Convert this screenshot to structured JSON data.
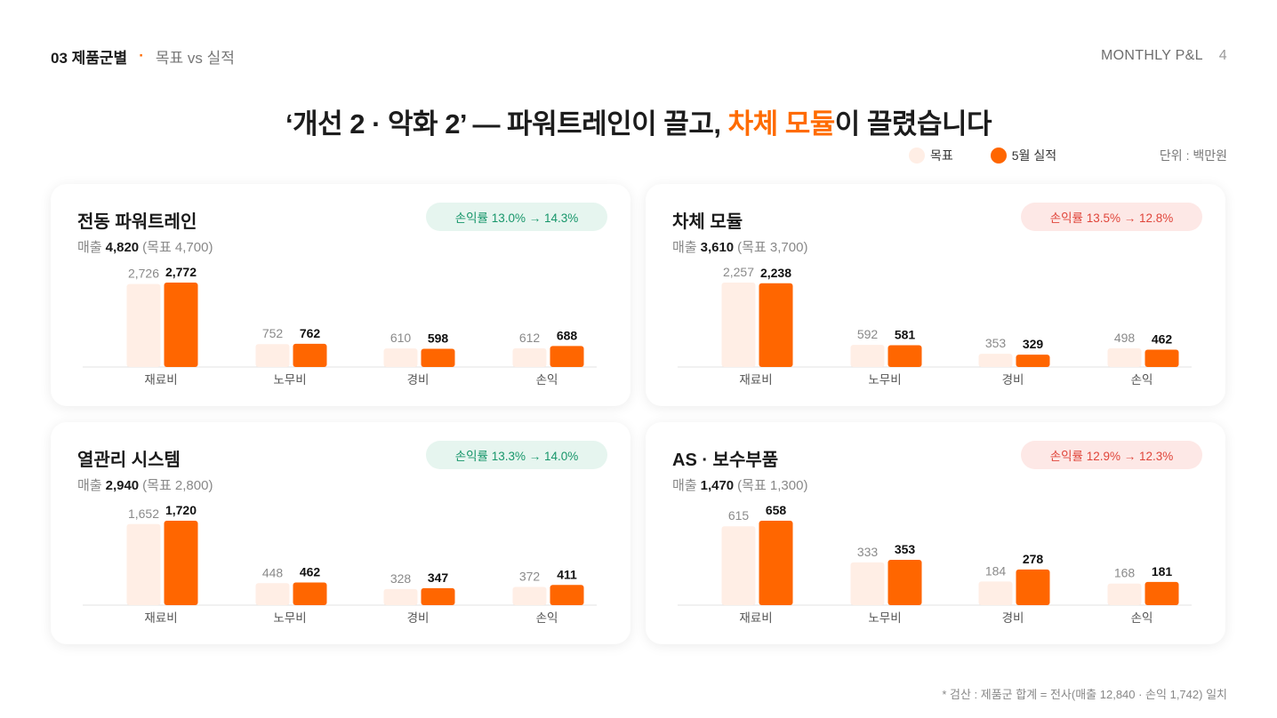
{
  "header": {
    "section_num": "03 제품군별",
    "section_sub": "목표 vs 실적",
    "brand": "MONTHLY P&L",
    "page_num": "4"
  },
  "headline": {
    "pre": "‘개선 2 · 악화 2’ — 파워트레인이 끌고, ",
    "highlight": "차체 모듈",
    "post": "이 끌렸습니다"
  },
  "legend": {
    "target_label": "목표",
    "actual_label": "5월 실적",
    "target_color": "#ffeee5",
    "actual_color": "#ff6600"
  },
  "unit_label": "단위 : 백만원",
  "sales_prefix": "매출",
  "footnote": "* 검산 : 제품군 합계 = 전사(매출 12,840 · 손익 1,742) 일치",
  "chart_data": [
    {
      "type": "bar",
      "title": "전동 파워트레인",
      "margin_badge": "손익률 13.0% → 14.3%",
      "trend": "up",
      "sales_value": "4,820",
      "sales_target": "(목표 4,700)",
      "categories": [
        "재료비",
        "노무비",
        "경비",
        "손익"
      ],
      "series": [
        {
          "name": "목표",
          "values": [
            2726,
            752,
            610,
            612
          ]
        },
        {
          "name": "5월 실적",
          "values": [
            2772,
            762,
            598,
            688
          ]
        }
      ]
    },
    {
      "type": "bar",
      "title": "차체 모듈",
      "margin_badge": "손익률 13.5% → 12.8%",
      "trend": "down",
      "sales_value": "3,610",
      "sales_target": "(목표 3,700)",
      "categories": [
        "재료비",
        "노무비",
        "경비",
        "손익"
      ],
      "series": [
        {
          "name": "목표",
          "values": [
            2257,
            592,
            353,
            498
          ]
        },
        {
          "name": "5월 실적",
          "values": [
            2238,
            581,
            329,
            462
          ]
        }
      ]
    },
    {
      "type": "bar",
      "title": "열관리 시스템",
      "margin_badge": "손익률 13.3% → 14.0%",
      "trend": "up",
      "sales_value": "2,940",
      "sales_target": "(목표 2,800)",
      "categories": [
        "재료비",
        "노무비",
        "경비",
        "손익"
      ],
      "series": [
        {
          "name": "목표",
          "values": [
            1652,
            448,
            328,
            372
          ]
        },
        {
          "name": "5월 실적",
          "values": [
            1720,
            462,
            347,
            411
          ]
        }
      ]
    },
    {
      "type": "bar",
      "title": "AS · 보수부품",
      "margin_badge": "손익률 12.9% → 12.3%",
      "trend": "down",
      "sales_value": "1,470",
      "sales_target": "(목표 1,300)",
      "categories": [
        "재료비",
        "노무비",
        "경비",
        "손익"
      ],
      "series": [
        {
          "name": "목표",
          "values": [
            615,
            333,
            184,
            168
          ]
        },
        {
          "name": "5월 실적",
          "values": [
            658,
            353,
            278,
            181
          ]
        }
      ]
    }
  ]
}
